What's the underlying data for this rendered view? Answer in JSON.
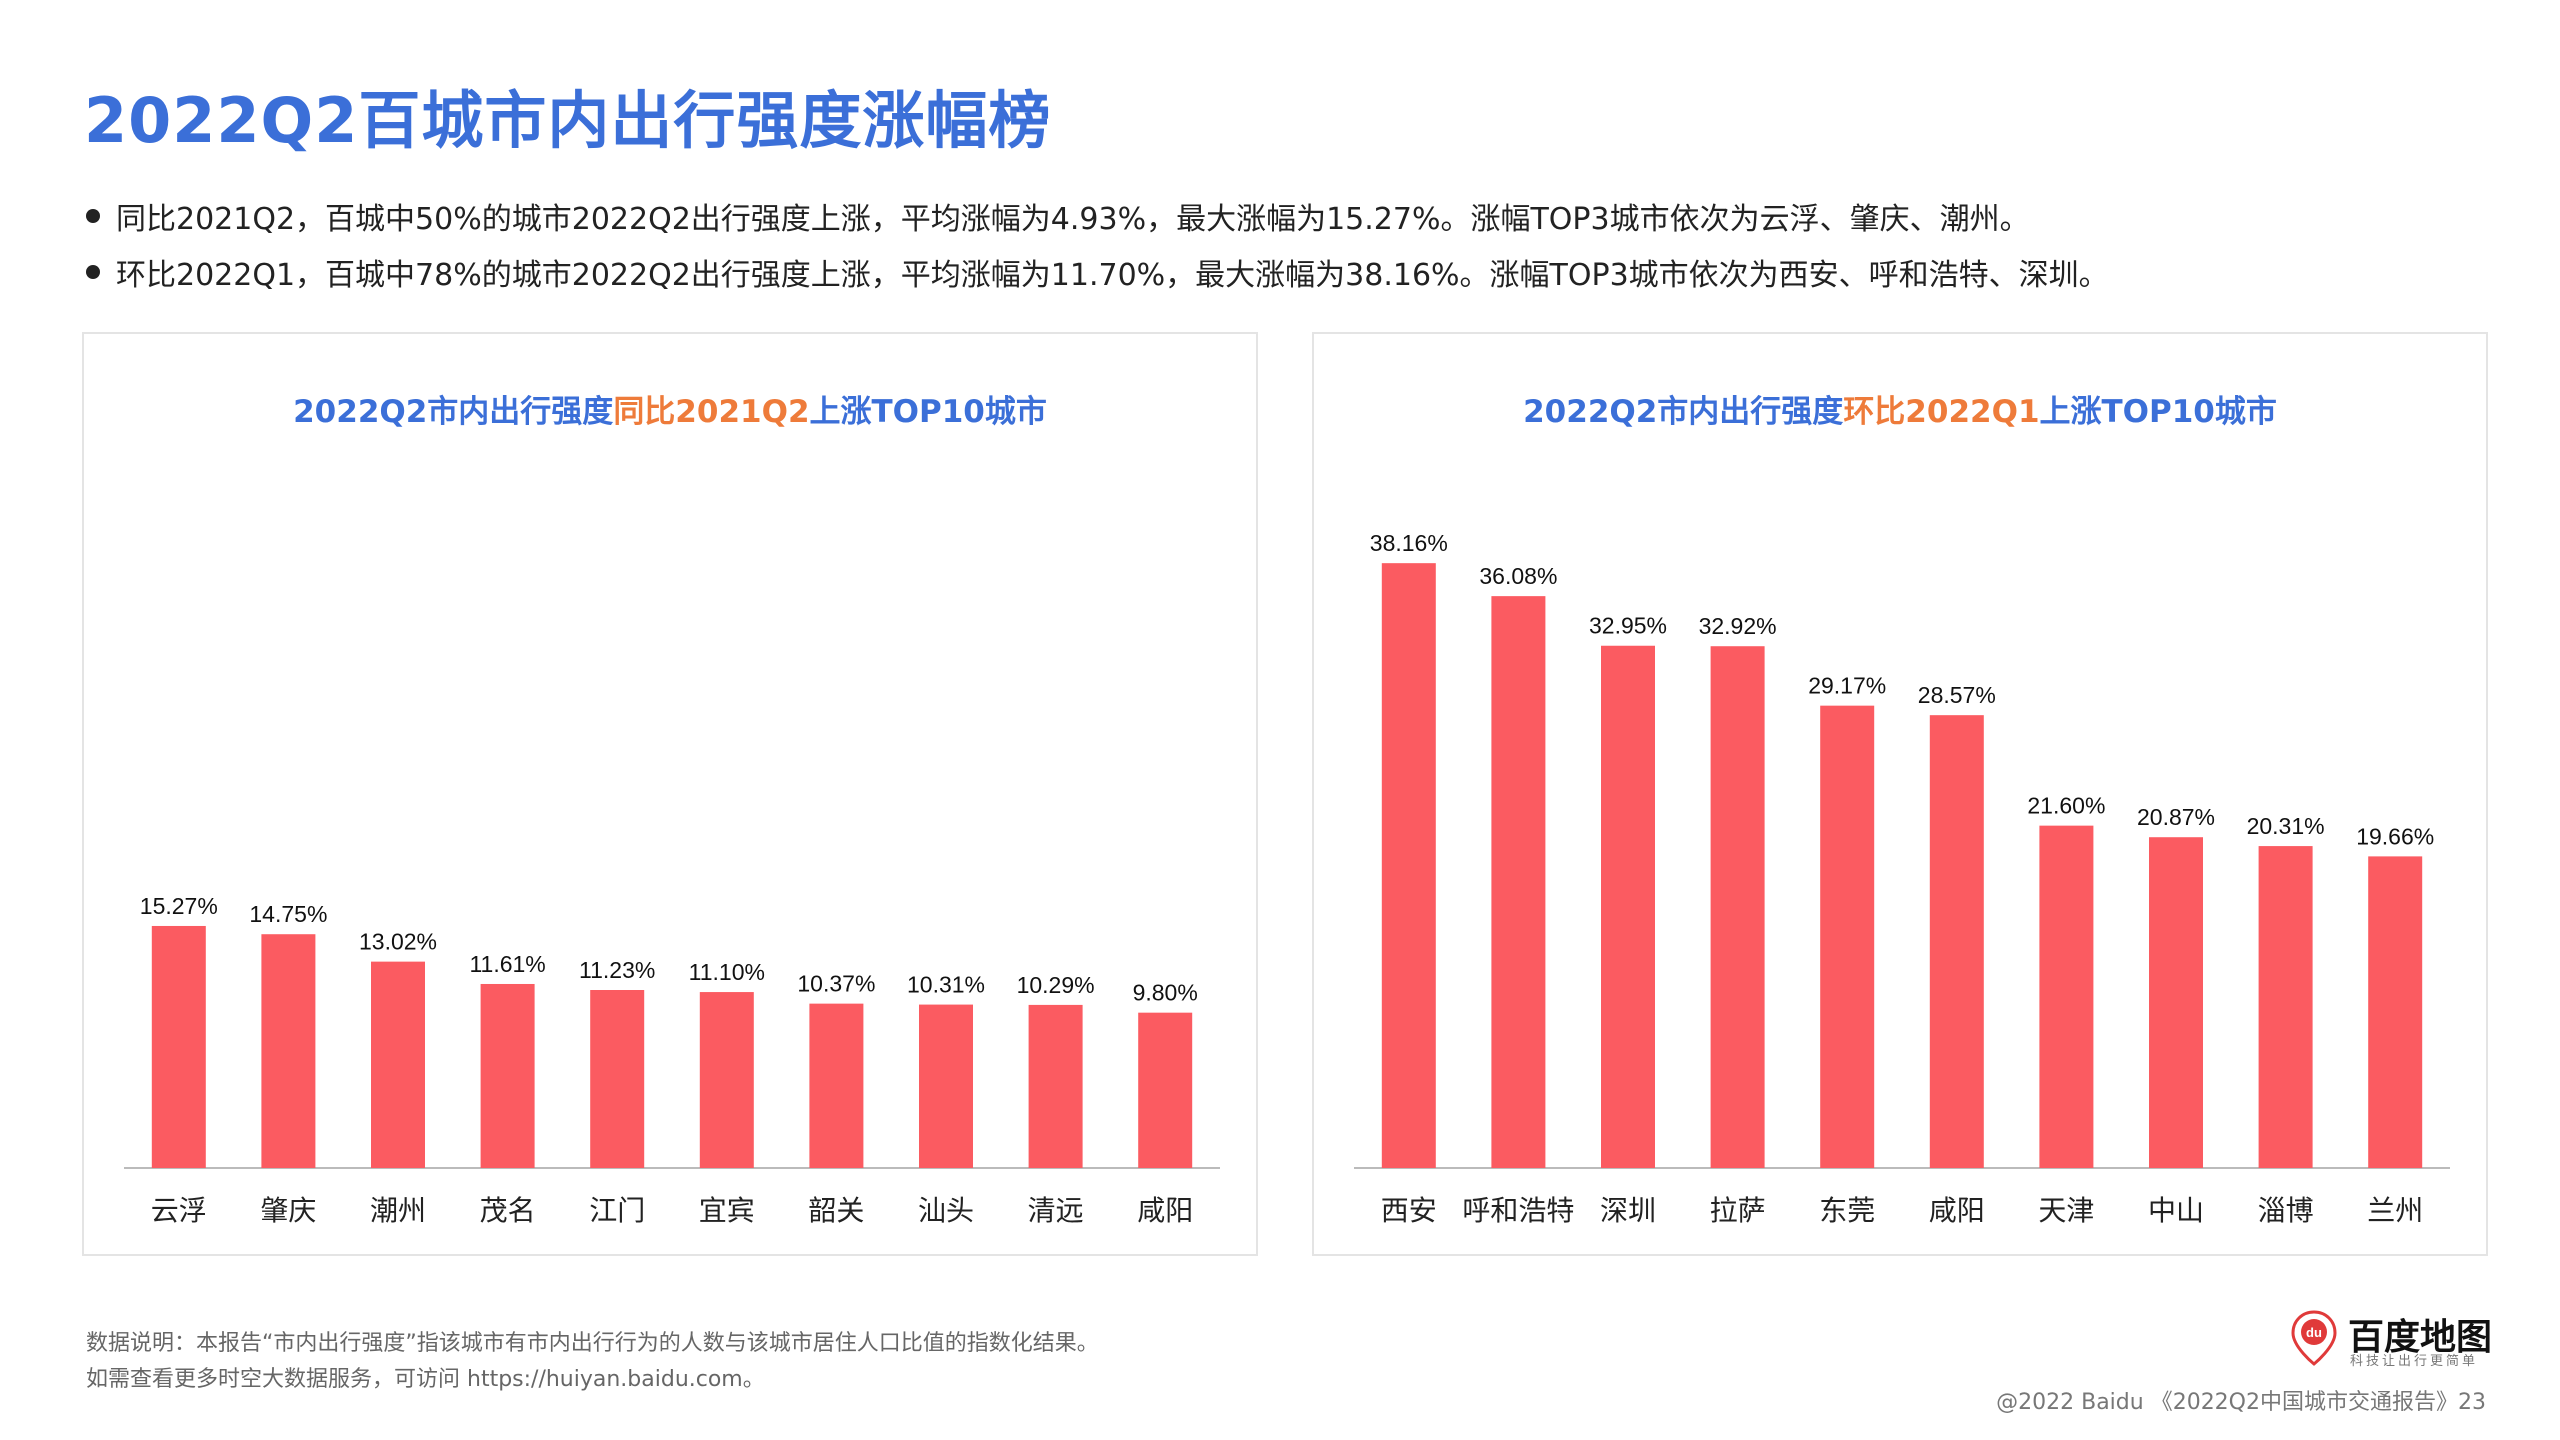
{
  "page": {
    "title": "2022Q2百城市内出行强度涨幅榜",
    "bullets": [
      "同比2021Q2，百城中50%的城市2022Q2出行强度上涨，平均涨幅为4.93%，最大涨幅为15.27%。涨幅TOP3城市依次为云浮、肇庆、潮州。",
      "环比2022Q1，百城中78%的城市2022Q2出行强度上涨，平均涨幅为11.70%，最大涨幅为38.16%。涨幅TOP3城市依次为西安、呼和浩特、深圳。"
    ],
    "footnote_1": "数据说明：本报告“市内出行强度”指该城市有市内出行行为的人数与该城市居住人口比值的指数化结果。",
    "footnote_2": "如需查看更多时空大数据服务，可访问 https://huiyan.baidu.com。",
    "footer_ref": "@2022 Baidu 《2022Q2中国城市交通报告》23",
    "brand_name": "百度地图",
    "brand_icon_text": "du",
    "brand_tagline": "科技让出行更简单",
    "colors": {
      "title": "#3b6fd8",
      "highlight": "#ee7b3a",
      "bar": "#fb5b61"
    }
  },
  "chart_data": [
    {
      "type": "bar",
      "title_parts": [
        "2022Q2市内出行强度",
        "同比2021Q2",
        "上涨TOP10城市"
      ],
      "categories": [
        "云浮",
        "肇庆",
        "潮州",
        "茂名",
        "江门",
        "宜宾",
        "韶关",
        "汕头",
        "清远",
        "咸阳"
      ],
      "values": [
        15.27,
        14.75,
        13.02,
        11.61,
        11.23,
        11.1,
        10.37,
        10.31,
        10.29,
        9.8
      ],
      "value_labels": [
        "15.27%",
        "14.75%",
        "13.02%",
        "11.61%",
        "11.23%",
        "11.10%",
        "10.37%",
        "10.31%",
        "10.29%",
        "9.80%"
      ],
      "ylim": [
        0,
        40
      ]
    },
    {
      "type": "bar",
      "title_parts": [
        "2022Q2市内出行强度",
        "环比2022Q1",
        "上涨TOP10城市"
      ],
      "categories": [
        "西安",
        "呼和浩特",
        "深圳",
        "拉萨",
        "东莞",
        "咸阳",
        "天津",
        "中山",
        "淄博",
        "兰州"
      ],
      "values": [
        38.16,
        36.08,
        32.95,
        32.92,
        29.17,
        28.57,
        21.6,
        20.87,
        20.31,
        19.66
      ],
      "value_labels": [
        "38.16%",
        "36.08%",
        "32.95%",
        "32.92%",
        "29.17%",
        "28.57%",
        "21.60%",
        "20.87%",
        "20.31%",
        "19.66%"
      ],
      "ylim": [
        0,
        40
      ]
    }
  ]
}
